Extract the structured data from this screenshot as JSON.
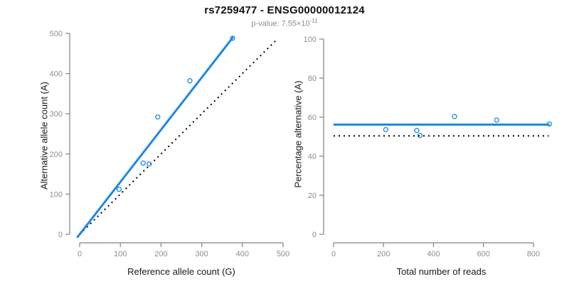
{
  "figure": {
    "title": "rs7259477 - ENSG00000012124",
    "p_value_prefix": "p-value: 7.55×10",
    "p_value_exponent": "-11"
  },
  "colors": {
    "accent": "#1e88e5",
    "black": "#000000",
    "axis": "#828282",
    "tick_label": "#8e8e8e",
    "title": "#111111",
    "subtitle": "#8c8c8c",
    "axis_label": "#1a1a1a"
  },
  "chart_data": [
    {
      "type": "scatter",
      "title": "",
      "xlabel": "Reference allele count (G)",
      "ylabel": "Alternative allele count (A)",
      "xlim": [
        0,
        500
      ],
      "ylim": [
        0,
        500
      ],
      "xticks": [
        0,
        100,
        200,
        300,
        400,
        500
      ],
      "yticks": [
        0,
        100,
        200,
        300,
        400,
        500
      ],
      "grid": false,
      "legend": "none",
      "points": [
        [
          97,
          112
        ],
        [
          156,
          177
        ],
        [
          171,
          175
        ],
        [
          192,
          292
        ],
        [
          271,
          382
        ],
        [
          376,
          488
        ]
      ],
      "lines": [
        {
          "name": "fit-line",
          "style": "solid",
          "color": "accent",
          "points": [
            [
              -5,
              -6.5
            ],
            [
              376,
              489
            ]
          ]
        },
        {
          "name": "identity-line",
          "style": "dotted",
          "color": "black",
          "points": [
            [
              0,
              0
            ],
            [
              487,
              487
            ]
          ]
        }
      ]
    },
    {
      "type": "scatter",
      "title": "",
      "xlabel": "Total number of reads",
      "ylabel": "Percentage alternative (A)",
      "xlim": [
        0,
        870
      ],
      "ylim": [
        0,
        100
      ],
      "xticks": [
        0,
        200,
        400,
        600,
        800
      ],
      "yticks": [
        0,
        20,
        40,
        60,
        80,
        100
      ],
      "grid": false,
      "legend": "none",
      "points": [
        [
          209,
          53.6
        ],
        [
          333,
          53.2
        ],
        [
          346,
          50.6
        ],
        [
          484,
          60.3
        ],
        [
          653,
          58.5
        ],
        [
          864,
          56.5
        ]
      ],
      "lines": [
        {
          "name": "fit-line",
          "style": "solid",
          "color": "accent",
          "points": [
            [
              3,
              56.2
            ],
            [
              861,
              56.2
            ]
          ]
        },
        {
          "name": "null-line",
          "style": "dotted",
          "color": "black",
          "points": [
            [
              0,
              50.4
            ],
            [
              861,
              50.4
            ]
          ]
        }
      ]
    }
  ]
}
